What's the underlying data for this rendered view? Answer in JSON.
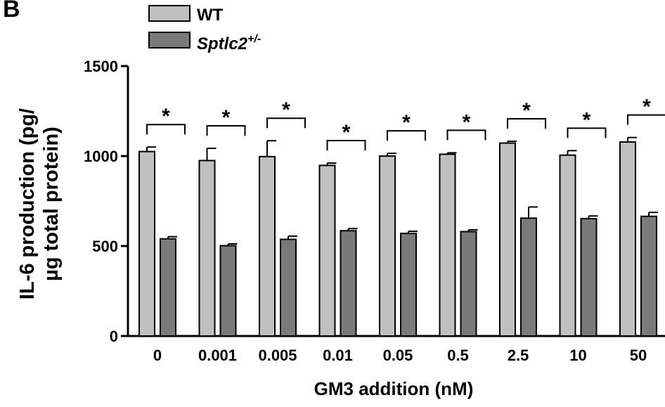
{
  "panel_label": "B",
  "chart_data": {
    "type": "bar",
    "categories": [
      "0",
      "0.001",
      "0.005",
      "0.01",
      "0.05",
      "0.5",
      "2.5",
      "10",
      "50"
    ],
    "series": [
      {
        "name": "WT",
        "color": "#c0c0c0",
        "values": [
          1025,
          975,
          997,
          948,
          1000,
          1010,
          1072,
          1005,
          1078
        ],
        "errors": [
          25,
          68,
          88,
          13,
          15,
          8,
          10,
          25,
          25
        ]
      },
      {
        "name": "Sptlc2+/-",
        "legend_base": "Sptlc2",
        "legend_sup": "+/-",
        "color": "#7a7a7a",
        "values": [
          540,
          502,
          537,
          585,
          570,
          580,
          655,
          652,
          665
        ],
        "errors": [
          12,
          10,
          18,
          12,
          12,
          10,
          62,
          15,
          22
        ]
      }
    ],
    "significance": [
      "*",
      "*",
      "*",
      "*",
      "*",
      "*",
      "*",
      "*",
      "*"
    ],
    "xlabel": "GM3 addition (nM)",
    "ylabel_line1": "IL-6 production (pg/",
    "ylabel_line2": "µg total protein)",
    "ylim": [
      0,
      1500
    ],
    "yticks": [
      0,
      500,
      1000,
      1500
    ],
    "grid": false,
    "legend_position": "top-left"
  }
}
